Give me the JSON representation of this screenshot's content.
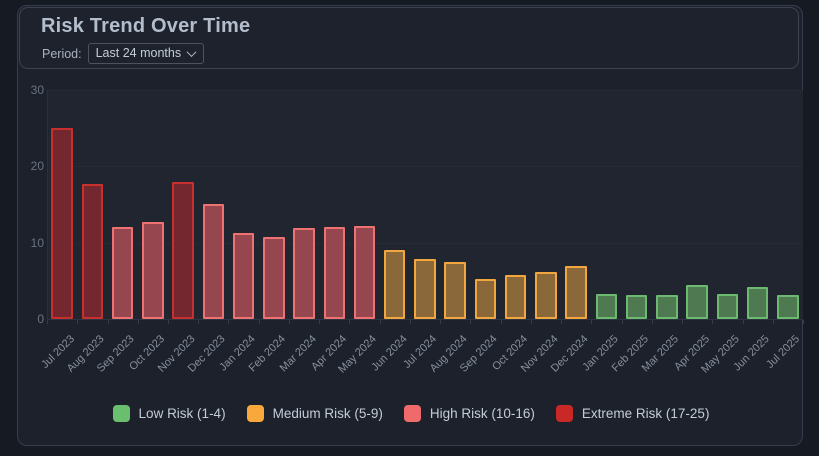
{
  "header": {
    "title": "Risk Trend Over Time",
    "period_label": "Period:",
    "period_value": "Last 24 months"
  },
  "chart_data": {
    "type": "bar",
    "title": "Risk Trend Over Time",
    "xlabel": "",
    "ylabel": "",
    "ylim": [
      0,
      30
    ],
    "yticks": [
      0,
      10,
      20,
      30
    ],
    "grid": true,
    "legend_position": "bottom",
    "categories": [
      "Jul 2023",
      "Aug 2023",
      "Sep 2023",
      "Oct 2023",
      "Nov 2023",
      "Dec 2023",
      "Jan 2024",
      "Feb 2024",
      "Mar 2024",
      "Apr 2024",
      "May 2024",
      "Jun 2024",
      "Jul 2024",
      "Aug 2024",
      "Sep 2024",
      "Oct 2024",
      "Nov 2024",
      "Dec 2024",
      "Jan 2025",
      "Feb 2025",
      "Mar 2025",
      "Apr 2025",
      "May 2025",
      "Jun 2025",
      "Jul 2025"
    ],
    "values": [
      25.0,
      17.7,
      12.1,
      12.7,
      17.9,
      15.1,
      11.3,
      10.8,
      11.9,
      12.0,
      12.2,
      9.0,
      7.9,
      7.5,
      5.3,
      5.8,
      6.1,
      6.9,
      3.3,
      3.2,
      3.1,
      4.4,
      3.3,
      4.2,
      3.1
    ],
    "levels": [
      "extreme",
      "extreme",
      "high",
      "high",
      "extreme",
      "high",
      "high",
      "high",
      "high",
      "high",
      "high",
      "medium",
      "medium",
      "medium",
      "medium",
      "medium",
      "medium",
      "medium",
      "low",
      "low",
      "low",
      "low",
      "low",
      "low",
      "low"
    ],
    "level_colors": {
      "low": {
        "fill": "#4f7a51",
        "border": "#6cba70",
        "swatch": "#6abf6e"
      },
      "medium": {
        "fill": "#8a683a",
        "border": "#f2a73e",
        "swatch": "#f9a83c"
      },
      "high": {
        "fill": "#95464f",
        "border": "#ef7272",
        "swatch": "#ef6a6a"
      },
      "extreme": {
        "fill": "#74272e",
        "border": "#c8302d",
        "swatch": "#c92926"
      }
    }
  },
  "legend": {
    "items": [
      {
        "level": "low",
        "label": "Low Risk (1-4)"
      },
      {
        "level": "medium",
        "label": "Medium Risk (5-9)"
      },
      {
        "level": "high",
        "label": "High Risk (10-16)"
      },
      {
        "level": "extreme",
        "label": "Extreme Risk (17-25)"
      }
    ]
  }
}
